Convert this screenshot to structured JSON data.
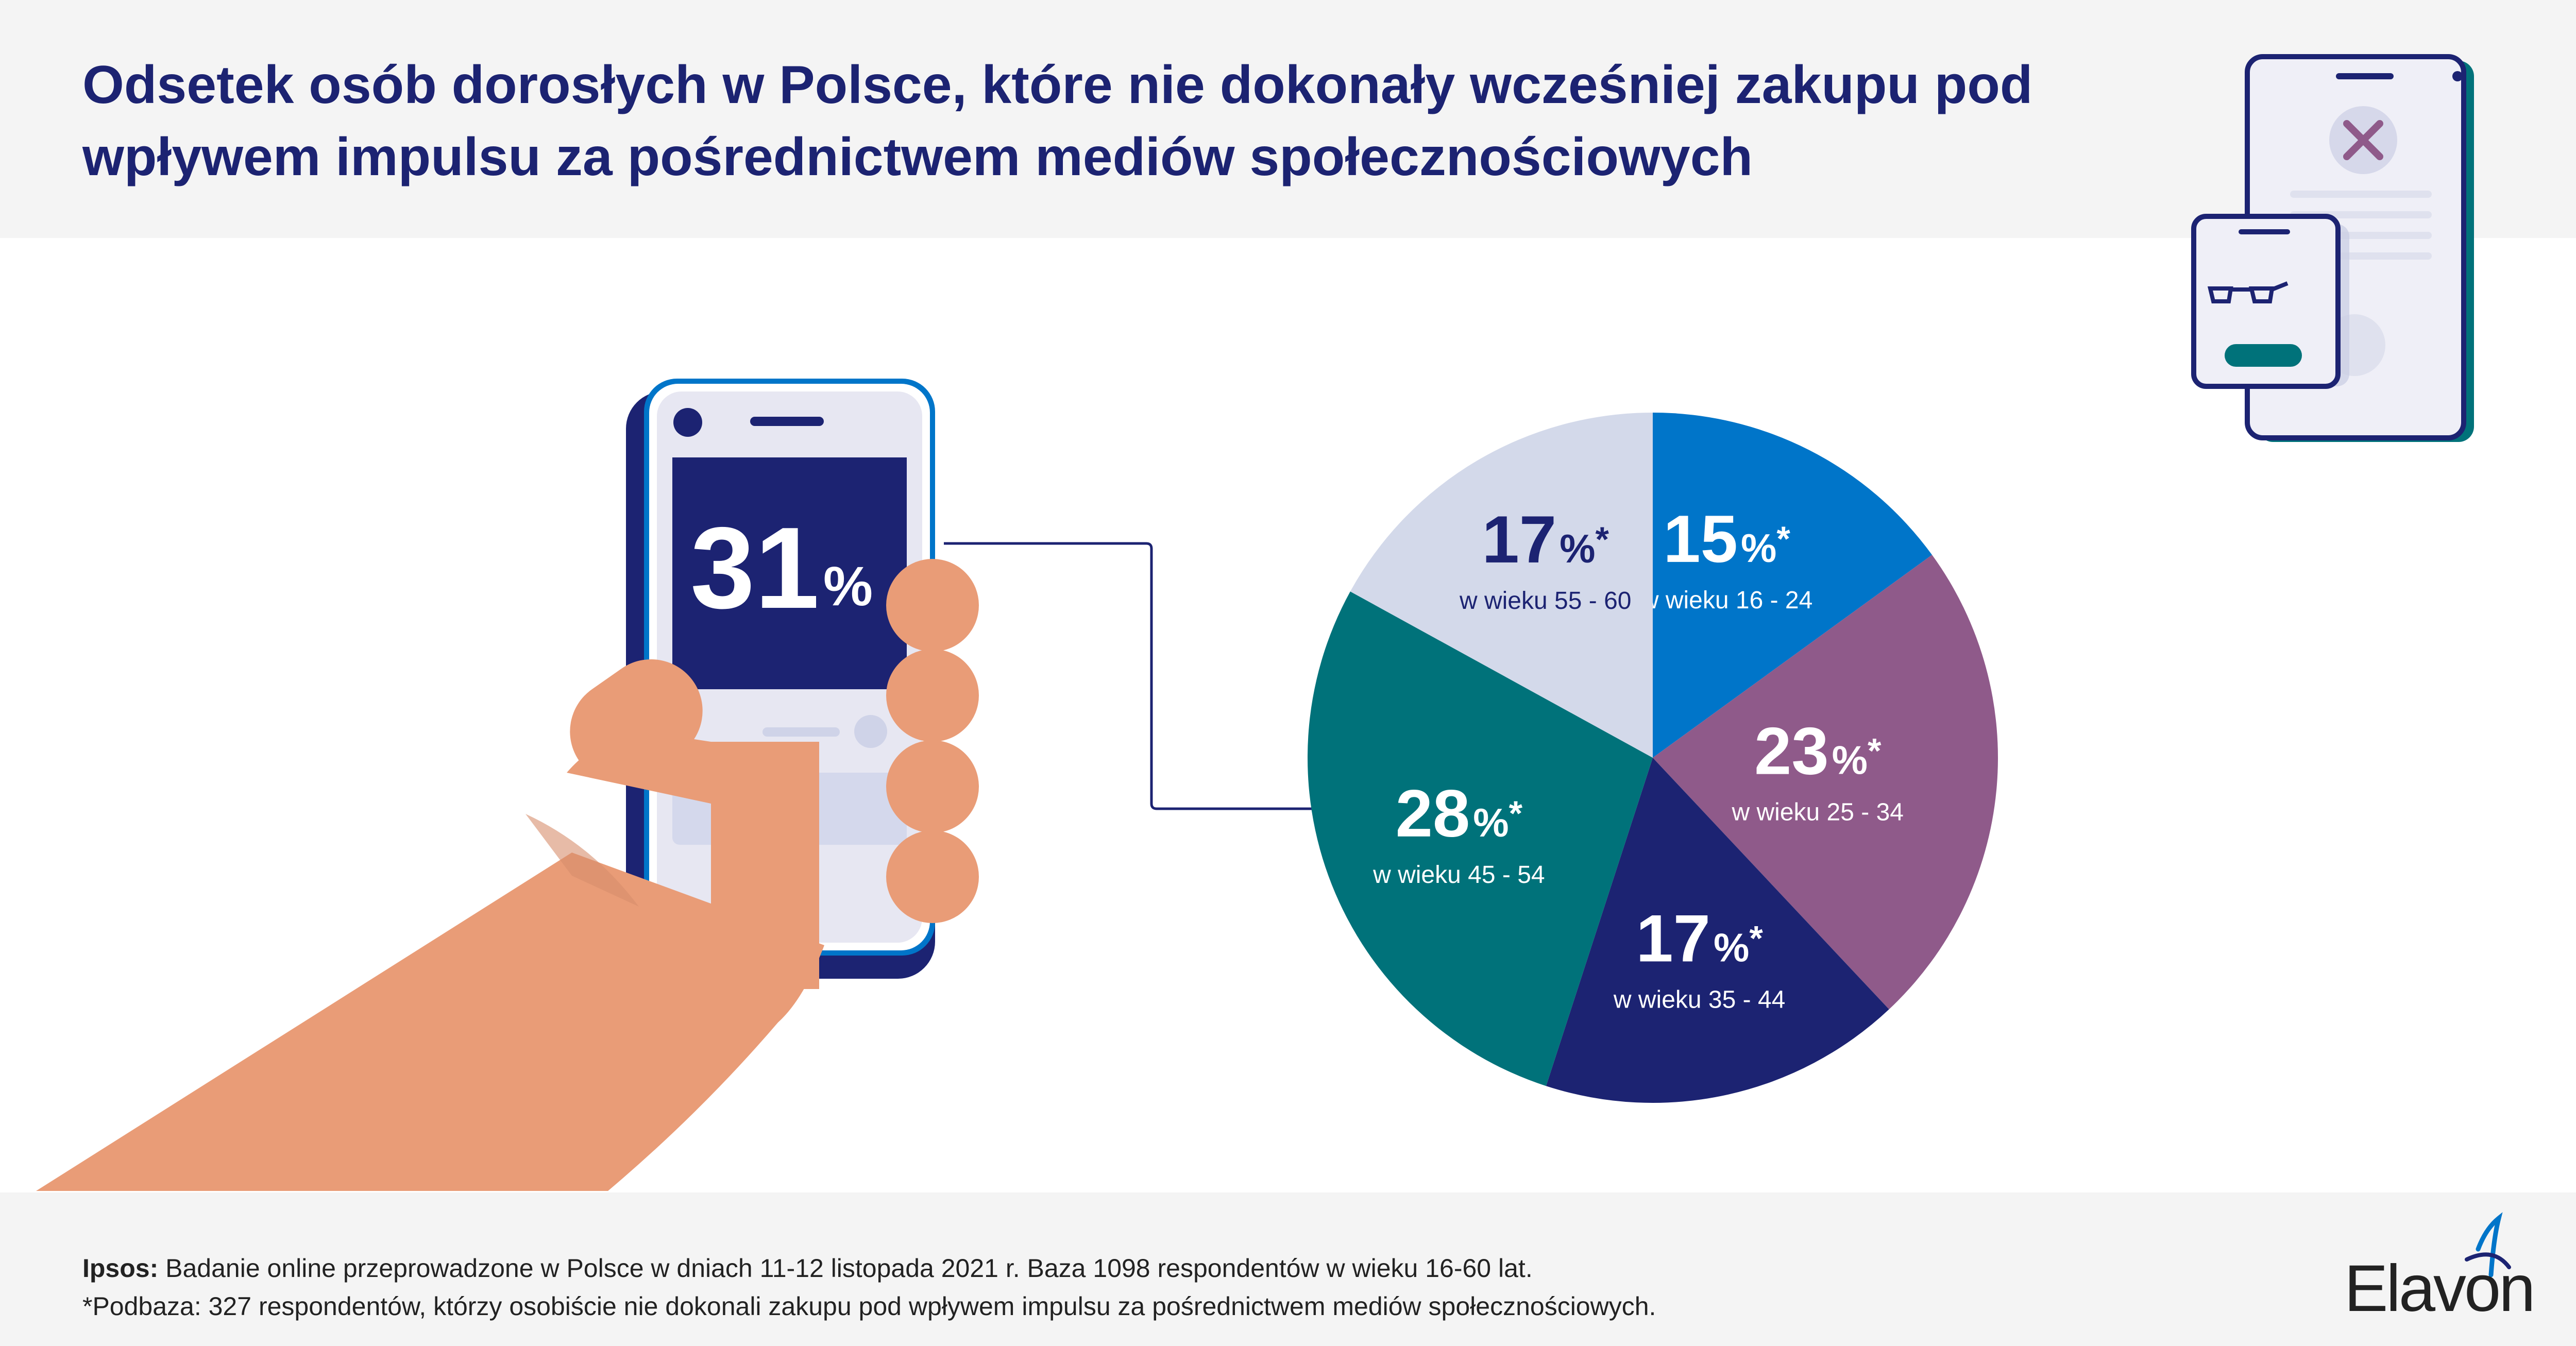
{
  "header": {
    "title": "Odsetek osób dorosłych w Polsce, które nie dokonały wcześniej zakupu pod wpływem impulsu za pośrednictwem mediów społecznościowych"
  },
  "phone": {
    "value": "31",
    "unit": "%"
  },
  "chart_data": {
    "type": "pie",
    "start_angle_deg": 0,
    "direction": "clockwise",
    "slices": [
      {
        "label": "w wieku 16 - 24",
        "value": 15,
        "value_text": "15",
        "unit": "%",
        "mark": "*",
        "color": "#0075c9",
        "text_color": "#ffffff",
        "label_color": "#ffffff"
      },
      {
        "label": "w wieku 25 - 34",
        "value": 23,
        "value_text": "23",
        "unit": "%",
        "mark": "*",
        "color": "#8f5a8a",
        "text_color": "#ffffff",
        "label_color": "#ffffff"
      },
      {
        "label": "w wieku 35 - 44",
        "value": 17,
        "value_text": "17",
        "unit": "%",
        "mark": "*",
        "color": "#1c2372",
        "text_color": "#ffffff",
        "label_color": "#ffffff"
      },
      {
        "label": "w wieku 45 - 54",
        "value": 28,
        "value_text": "28",
        "unit": "%",
        "mark": "*",
        "color": "#00727a",
        "text_color": "#ffffff",
        "label_color": "#ffffff"
      },
      {
        "label": "w wieku 55 - 60",
        "value": 17,
        "value_text": "17",
        "unit": "%",
        "mark": "*",
        "color": "#d3d9ea",
        "text_color": "#1c2372",
        "label_color": "#1c2372"
      }
    ]
  },
  "footer": {
    "source_lead": "Ipsos:",
    "source_text": " Badanie online przeprowadzone w Polsce w dniach 11-12 listopada 2021 r. Baza 1098 respondentów w wieku 16-60 lat.",
    "note": "*Podbaza: 327 respondentów, którzy osobiście nie dokonali zakupu pod wpływem impulsu za pośrednictwem mediów społecznościowych."
  },
  "brand": {
    "logo_text": "Elavon",
    "primary_color": "#1c2372",
    "accent_color": "#0075c9"
  },
  "icons": {
    "top_right": "phones-cancel-icon",
    "hand": "hand-holding-phone-icon"
  }
}
